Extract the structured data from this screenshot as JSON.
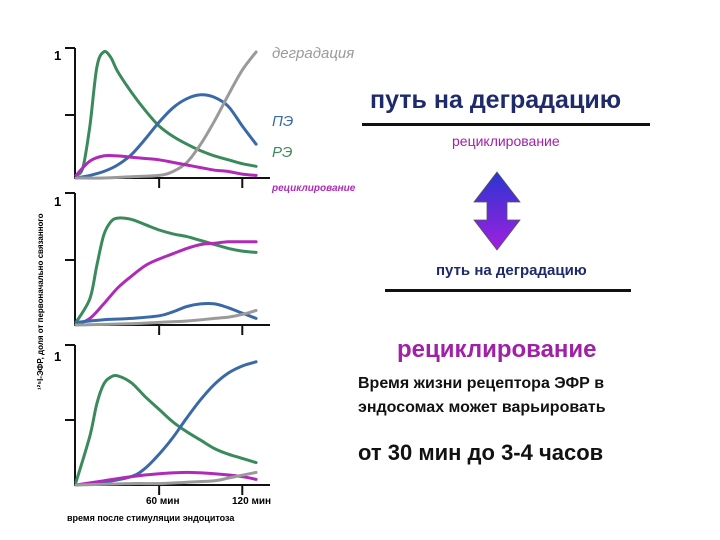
{
  "chart_data": [
    {
      "type": "line",
      "panel": "top",
      "y_tick_label": "1",
      "ylim": [
        0,
        1
      ],
      "xlim": [
        0,
        140
      ],
      "series": [
        {
          "name": "РЭ",
          "color": "#3a8a5c",
          "x": [
            0,
            5,
            10,
            15,
            20,
            25,
            30,
            40,
            50,
            60,
            70,
            80,
            90,
            100,
            110,
            120,
            130
          ],
          "y": [
            0.02,
            0.08,
            0.4,
            0.85,
            0.97,
            0.93,
            0.82,
            0.66,
            0.52,
            0.4,
            0.32,
            0.26,
            0.21,
            0.17,
            0.14,
            0.11,
            0.09
          ]
        },
        {
          "name": "ПЭ",
          "color": "#3a69a8",
          "x": [
            0,
            10,
            20,
            30,
            40,
            50,
            60,
            70,
            80,
            90,
            100,
            110,
            120,
            130
          ],
          "y": [
            0.0,
            0.02,
            0.05,
            0.1,
            0.18,
            0.3,
            0.43,
            0.54,
            0.61,
            0.64,
            0.62,
            0.55,
            0.4,
            0.26
          ]
        },
        {
          "name": "деградация",
          "color": "#9a9a9a",
          "x": [
            0,
            20,
            40,
            60,
            70,
            80,
            90,
            100,
            110,
            120,
            130
          ],
          "y": [
            0.0,
            0.0,
            0.01,
            0.02,
            0.05,
            0.12,
            0.26,
            0.44,
            0.64,
            0.83,
            0.97
          ]
        },
        {
          "name": "рециклирование",
          "color": "#b02ab8",
          "x": [
            0,
            10,
            20,
            30,
            40,
            50,
            60,
            70,
            80,
            90,
            100,
            110,
            120,
            130
          ],
          "y": [
            0.02,
            0.13,
            0.17,
            0.17,
            0.16,
            0.15,
            0.14,
            0.12,
            0.1,
            0.08,
            0.06,
            0.05,
            0.03,
            0.02
          ]
        }
      ]
    },
    {
      "type": "line",
      "panel": "middle",
      "y_tick_label": "1",
      "ylim": [
        0,
        1
      ],
      "xlim": [
        0,
        140
      ],
      "series": [
        {
          "color": "#3a8a5c",
          "x": [
            0,
            10,
            15,
            20,
            25,
            30,
            40,
            50,
            60,
            70,
            80,
            90,
            100,
            110,
            120,
            130
          ],
          "y": [
            0.02,
            0.2,
            0.45,
            0.68,
            0.78,
            0.81,
            0.8,
            0.76,
            0.72,
            0.69,
            0.67,
            0.64,
            0.61,
            0.58,
            0.56,
            0.55
          ]
        },
        {
          "color": "#b02ab8",
          "x": [
            0,
            10,
            20,
            30,
            40,
            50,
            60,
            70,
            80,
            90,
            100,
            110,
            120,
            130
          ],
          "y": [
            0.0,
            0.05,
            0.16,
            0.28,
            0.37,
            0.45,
            0.5,
            0.54,
            0.58,
            0.61,
            0.62,
            0.63,
            0.63,
            0.63
          ]
        },
        {
          "color": "#3a69a8",
          "x": [
            0,
            20,
            40,
            60,
            70,
            80,
            90,
            100,
            110,
            120,
            130
          ],
          "y": [
            0.02,
            0.04,
            0.05,
            0.07,
            0.1,
            0.14,
            0.16,
            0.16,
            0.13,
            0.09,
            0.05
          ]
        },
        {
          "color": "#9a9a9a",
          "x": [
            0,
            40,
            60,
            80,
            100,
            110,
            120,
            130
          ],
          "y": [
            0.0,
            0.01,
            0.02,
            0.03,
            0.05,
            0.06,
            0.08,
            0.11
          ]
        }
      ]
    },
    {
      "type": "line",
      "panel": "bottom",
      "y_tick_label": "1",
      "ylim": [
        0,
        1
      ],
      "xlim": [
        0,
        140
      ],
      "xlabel": "время после стимуляции эндоцитоза",
      "ylabel": "¹²⁵I-ЭФР, доля от первоначально связанного",
      "x_tick_labels": [
        {
          "x": 60,
          "label": "60 мин"
        },
        {
          "x": 120,
          "label": "120 мин"
        }
      ],
      "series": [
        {
          "color": "#3a8a5c",
          "x": [
            0,
            10,
            15,
            20,
            25,
            30,
            40,
            50,
            60,
            70,
            80,
            90,
            100,
            110,
            120,
            130
          ],
          "y": [
            0.02,
            0.35,
            0.58,
            0.72,
            0.77,
            0.78,
            0.73,
            0.63,
            0.54,
            0.45,
            0.38,
            0.32,
            0.26,
            0.22,
            0.19,
            0.16
          ]
        },
        {
          "color": "#3a69a8",
          "x": [
            0,
            20,
            40,
            50,
            60,
            70,
            80,
            90,
            100,
            110,
            120,
            130
          ],
          "y": [
            0.0,
            0.02,
            0.06,
            0.12,
            0.22,
            0.34,
            0.48,
            0.61,
            0.72,
            0.8,
            0.85,
            0.88
          ]
        },
        {
          "color": "#b02ab8",
          "x": [
            0,
            20,
            40,
            60,
            80,
            100,
            120,
            130
          ],
          "y": [
            0.0,
            0.03,
            0.06,
            0.08,
            0.09,
            0.08,
            0.06,
            0.04
          ]
        },
        {
          "color": "#9a9a9a",
          "x": [
            0,
            40,
            60,
            80,
            100,
            110,
            120,
            130
          ],
          "y": [
            0.0,
            0.01,
            0.01,
            0.02,
            0.03,
            0.05,
            0.07,
            0.09
          ]
        }
      ]
    }
  ],
  "right_panel": {
    "path_degradation": "путь на деградацию",
    "recycling_small": "рециклирование",
    "path_degradation_small": "путь на деградацию",
    "recycling_big": "рециклирование",
    "lifetime_line1": "Время жизни рецептора ЭФР в",
    "lifetime_line2": "эндосомах может варьировать",
    "range": "от 30 мин до 3-4 часов"
  },
  "colors": {
    "green": "#3a8a5c",
    "blue": "#3a69a8",
    "gray": "#9a9a9a",
    "magenta": "#b02ab8",
    "arrow_top": "#2a35d0",
    "arrow_bottom": "#a020e0"
  }
}
